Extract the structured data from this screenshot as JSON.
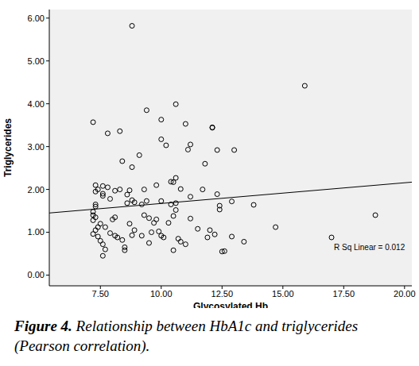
{
  "chart_data": {
    "type": "scatter",
    "x_label": "Glycosylated Hb",
    "y_label": "Triglycerides",
    "x": [
      8.8,
      15.9,
      10.6,
      9.4,
      7.2,
      10.0,
      11.0,
      8.3,
      7.8,
      12.1,
      12.1,
      10.0,
      10.2,
      11.2,
      11.1,
      12.3,
      13.0,
      9.1,
      8.8,
      11.8,
      8.4,
      10.5,
      10.4,
      10.6,
      9.8,
      10.8,
      11.7,
      7.3,
      7.4,
      7.6,
      7.8,
      8.1,
      8.3,
      8.7,
      9.3,
      7.6,
      7.3,
      7.3,
      7.3,
      7.2,
      7.2,
      7.3,
      7.2,
      7.6,
      7.9,
      8.6,
      8.8,
      8.9,
      8.6,
      9.2,
      9.4,
      10.0,
      10.4,
      10.6,
      11.2,
      12.3,
      12.4,
      12.4,
      12.9,
      13.8,
      9.3,
      9.5,
      9.8,
      8.0,
      8.1,
      7.5,
      7.7,
      7.4,
      7.3,
      7.2,
      7.4,
      7.5,
      7.6,
      7.7,
      7.6,
      7.9,
      8.1,
      8.2,
      8.4,
      8.5,
      8.5,
      8.8,
      8.9,
      9.2,
      9.5,
      9.7,
      9.9,
      10.0,
      10.1,
      10.3,
      10.5,
      10.6,
      10.7,
      10.8,
      11.0,
      11.2,
      11.5,
      11.9,
      12.0,
      12.2,
      12.5,
      12.6,
      12.9,
      13.4,
      14.7,
      17.0,
      18.8,
      10.5,
      9.6,
      8.7
    ],
    "values": [
      5.82,
      4.42,
      3.99,
      3.85,
      3.57,
      3.63,
      3.53,
      3.36,
      3.31,
      3.45,
      3.44,
      3.17,
      3.03,
      3.05,
      2.93,
      2.92,
      2.92,
      2.8,
      2.52,
      2.6,
      2.66,
      2.17,
      2.18,
      2.27,
      2.1,
      2.01,
      2.0,
      2.1,
      2.0,
      2.08,
      2.05,
      1.97,
      2.0,
      1.98,
      2.0,
      1.9,
      1.95,
      1.65,
      1.6,
      1.48,
      1.4,
      1.35,
      1.28,
      1.85,
      1.78,
      1.88,
      1.75,
      1.7,
      1.68,
      1.65,
      1.73,
      1.73,
      1.65,
      1.68,
      1.83,
      1.89,
      1.62,
      1.53,
      1.72,
      1.64,
      1.4,
      1.33,
      1.3,
      1.3,
      1.35,
      1.2,
      1.12,
      1.12,
      1.05,
      0.96,
      0.9,
      0.8,
      0.72,
      0.6,
      0.45,
      0.98,
      0.92,
      0.88,
      0.82,
      0.65,
      0.58,
      0.93,
      1.05,
      0.92,
      0.75,
      1.22,
      1.02,
      0.92,
      0.88,
      1.22,
      1.38,
      1.52,
      0.85,
      0.78,
      0.72,
      1.32,
      1.08,
      0.88,
      1.05,
      0.95,
      0.55,
      0.56,
      0.9,
      0.78,
      1.12,
      0.88,
      1.4,
      0.58,
      1.0,
      1.2
    ],
    "color": "#000000",
    "marker": "circle",
    "trend_line": {
      "x": [
        5.4,
        20.3
      ],
      "values": [
        1.45,
        2.17
      ],
      "color": "#000000"
    },
    "annotations": [
      "R Sq Linear = 0.012"
    ],
    "xlim": [
      5.4,
      20.3
    ],
    "xticks": [
      {
        "value": 7.5,
        "label": "7.50"
      },
      {
        "value": 10,
        "label": "10.00"
      },
      {
        "value": 12.5,
        "label": "12.50"
      },
      {
        "value": 15,
        "label": "15.00"
      },
      {
        "value": 17.5,
        "label": "17.50"
      },
      {
        "value": 20,
        "label": "20.00"
      }
    ],
    "ylim": [
      -0.25,
      6.2
    ],
    "yticks": [
      {
        "value": 0,
        "label": "0.00"
      },
      {
        "value": 1,
        "label": "1.00"
      },
      {
        "value": 2,
        "label": "2.00"
      },
      {
        "value": 3,
        "label": "3.00"
      },
      {
        "value": 4,
        "label": "4.00"
      },
      {
        "value": 5,
        "label": "5.00"
      },
      {
        "value": 6,
        "label": "6.00"
      }
    ],
    "grid": false
  },
  "caption": {
    "label": "Figure 4.",
    "text": "Relationship between HbA1c and triglycerides (Pearson correlation)."
  }
}
